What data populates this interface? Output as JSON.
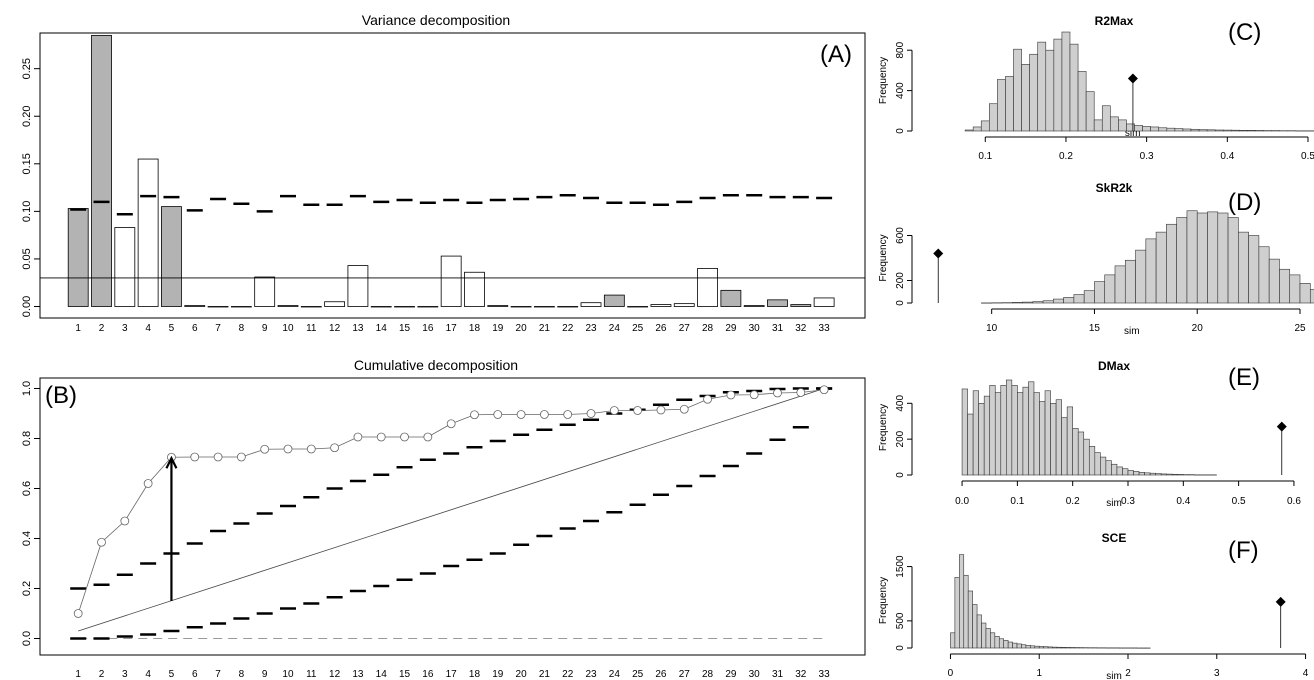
{
  "chart_data": [
    {
      "panel": "(A)",
      "type": "bar",
      "title": "Variance decomposition",
      "xlabel": "",
      "ylabel": "",
      "categories": [
        "1",
        "2",
        "3",
        "4",
        "5",
        "6",
        "7",
        "8",
        "9",
        "10",
        "11",
        "12",
        "13",
        "14",
        "15",
        "16",
        "17",
        "18",
        "19",
        "20",
        "21",
        "22",
        "23",
        "24",
        "25",
        "26",
        "27",
        "28",
        "29",
        "30",
        "31",
        "32",
        "33"
      ],
      "values": [
        0.103,
        0.285,
        0.083,
        0.155,
        0.105,
        0.001,
        0.0,
        0.0,
        0.031,
        0.001,
        0.0,
        0.005,
        0.043,
        0.0,
        0.0,
        0.0,
        0.053,
        0.036,
        0.001,
        0.0,
        0.0,
        0.0,
        0.004,
        0.012,
        0.0,
        0.002,
        0.003,
        0.04,
        0.017,
        0.001,
        0.007,
        0.002,
        0.009
      ],
      "significant": [
        1,
        2,
        5,
        24,
        29,
        31,
        32
      ],
      "threshold_marks": [
        0.102,
        0.11,
        0.097,
        0.116,
        0.115,
        0.101,
        0.113,
        0.108,
        0.1,
        0.116,
        0.107,
        0.107,
        0.116,
        0.11,
        0.112,
        0.109,
        0.112,
        0.109,
        0.112,
        0.113,
        0.115,
        0.117,
        0.114,
        0.109,
        0.109,
        0.107,
        0.11,
        0.114,
        0.117,
        0.117,
        0.115,
        0.115,
        0.114
      ],
      "hline": 0.03,
      "ylim": [
        0,
        0.29
      ],
      "yticks": [
        "0.00",
        "0.05",
        "0.10",
        "0.15",
        "0.20",
        "0.25"
      ],
      "colors": {
        "significant": "#b3b3b3",
        "other": "#ffffff"
      }
    },
    {
      "panel": "(B)",
      "type": "line",
      "title": "Cumulative decomposition",
      "xlabel": "",
      "ylabel": "",
      "x": [
        1,
        2,
        3,
        4,
        5,
        6,
        7,
        8,
        9,
        10,
        11,
        12,
        13,
        14,
        15,
        16,
        17,
        18,
        19,
        20,
        21,
        22,
        23,
        24,
        25,
        26,
        27,
        28,
        29,
        30,
        31,
        32,
        33
      ],
      "cumulative": [
        0.1,
        0.385,
        0.47,
        0.62,
        0.725,
        0.726,
        0.726,
        0.726,
        0.757,
        0.758,
        0.758,
        0.763,
        0.806,
        0.806,
        0.806,
        0.806,
        0.859,
        0.895,
        0.896,
        0.896,
        0.896,
        0.896,
        0.9,
        0.912,
        0.912,
        0.914,
        0.917,
        0.957,
        0.974,
        0.975,
        0.982,
        0.984,
        0.995
      ],
      "upper_marks": [
        0.2,
        0.215,
        0.255,
        0.3,
        0.34,
        0.38,
        0.43,
        0.46,
        0.5,
        0.53,
        0.565,
        0.6,
        0.63,
        0.655,
        0.685,
        0.715,
        0.74,
        0.765,
        0.79,
        0.815,
        0.835,
        0.855,
        0.875,
        0.9,
        0.915,
        0.935,
        0.955,
        0.97,
        0.985,
        0.99,
        0.998,
        1.0,
        1.0
      ],
      "lower_marks": [
        0.0,
        0.0,
        0.008,
        0.016,
        0.03,
        0.045,
        0.06,
        0.08,
        0.1,
        0.12,
        0.14,
        0.165,
        0.19,
        0.21,
        0.235,
        0.26,
        0.29,
        0.315,
        0.34,
        0.375,
        0.41,
        0.44,
        0.47,
        0.505,
        0.535,
        0.575,
        0.61,
        0.65,
        0.69,
        0.74,
        0.795,
        0.845,
        1.0
      ],
      "arrow": {
        "x": 5,
        "from": 0.15,
        "to": 0.725
      },
      "ylim": [
        0,
        1
      ],
      "yticks": [
        "0.0",
        "0.2",
        "0.4",
        "0.6",
        "0.8",
        "1.0"
      ]
    },
    {
      "panel": "(C)",
      "type": "bar",
      "title": "R2Max",
      "xlabel": "sim",
      "ylabel": "Frequency",
      "bin_start": 0.075,
      "bin_width": 0.01,
      "values": [
        10,
        40,
        100,
        270,
        510,
        540,
        810,
        660,
        760,
        880,
        800,
        910,
        980,
        860,
        590,
        390,
        110,
        250,
        140,
        110,
        70,
        55,
        45,
        40,
        32,
        28,
        24,
        20,
        17,
        14,
        12,
        10,
        9,
        8,
        7,
        6,
        5,
        4,
        4,
        3,
        3,
        2,
        2,
        2,
        1,
        1,
        1,
        1,
        1
      ],
      "observed": {
        "value": 0.283,
        "height": 520
      },
      "xlim": [
        0.06,
        0.5
      ],
      "ylim": [
        0,
        1000
      ],
      "xticks": [
        "0.1",
        "0.2",
        "0.3",
        "0.4",
        "0.5"
      ],
      "yticks": [
        "0",
        "400",
        "800"
      ]
    },
    {
      "panel": "(D)",
      "type": "bar",
      "title": "SkR2k",
      "xlabel": "sim",
      "ylabel": "Frequency",
      "bin_start": 9.5,
      "bin_width": 0.5,
      "values": [
        1,
        2,
        3,
        5,
        8,
        12,
        20,
        35,
        50,
        75,
        110,
        190,
        250,
        330,
        380,
        470,
        570,
        630,
        700,
        760,
        820,
        800,
        810,
        800,
        760,
        630,
        600,
        500,
        390,
        300,
        250,
        175,
        120,
        65,
        50,
        30,
        15,
        10
      ],
      "observed": {
        "value": 7.4,
        "height": 440
      },
      "xlim": [
        7,
        25
      ],
      "ylim": [
        0,
        800
      ],
      "xticks": [
        "10",
        "15",
        "20",
        "25"
      ],
      "yticks": [
        "0",
        "200",
        "600"
      ]
    },
    {
      "panel": "(E)",
      "type": "bar",
      "title": "DMax",
      "xlabel": "sim",
      "ylabel": "Frequency",
      "bin_start": 0.0,
      "bin_width": 0.01,
      "values": [
        480,
        340,
        470,
        400,
        440,
        500,
        460,
        500,
        530,
        500,
        460,
        490,
        520,
        460,
        410,
        470,
        400,
        420,
        320,
        380,
        260,
        240,
        200,
        160,
        125,
        100,
        80,
        60,
        45,
        35,
        25,
        20,
        15,
        12,
        10,
        8,
        6,
        5,
        4,
        3,
        2,
        2,
        1,
        1,
        1,
        1
      ],
      "observed": {
        "value": 0.578,
        "height": 270
      },
      "xlim": [
        -0.02,
        0.62
      ],
      "ylim": [
        0,
        530
      ],
      "xticks": [
        "0.0",
        "0.1",
        "0.2",
        "0.3",
        "0.4",
        "0.5",
        "0.6"
      ],
      "yticks": [
        "0",
        "200",
        "400"
      ]
    },
    {
      "panel": "(F)",
      "type": "bar",
      "title": "SCE",
      "xlabel": "sim",
      "ylabel": "Frequency",
      "bin_start": 0.0,
      "bin_width": 0.05,
      "values": [
        280,
        1300,
        1720,
        1340,
        1050,
        800,
        610,
        460,
        360,
        280,
        215,
        170,
        140,
        110,
        90,
        75,
        60,
        50,
        40,
        34,
        28,
        24,
        20,
        16,
        14,
        12,
        10,
        9,
        8,
        7,
        6,
        5,
        5,
        4,
        4,
        3,
        3,
        3,
        2,
        2,
        2,
        2,
        1,
        1,
        1
      ],
      "observed": {
        "value": 3.72,
        "height": 850
      },
      "xlim": [
        -0.05,
        4.05
      ],
      "ylim": [
        0,
        1750
      ],
      "xticks": [
        "0",
        "1",
        "2",
        "3",
        "4"
      ],
      "yticks": [
        "0",
        "500",
        "1500"
      ]
    }
  ]
}
